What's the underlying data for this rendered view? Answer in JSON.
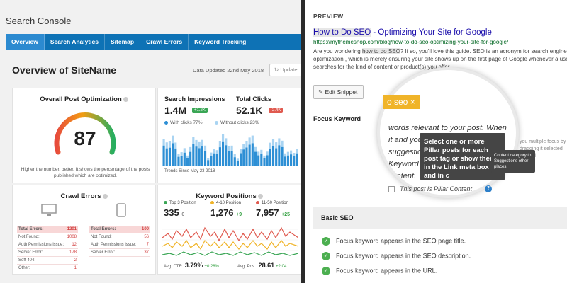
{
  "search_console": {
    "title": "Search Console",
    "tabs": [
      "Overview",
      "Search Analytics",
      "Sitemap",
      "Crawl Errors",
      "Keyword Tracking"
    ],
    "overview_title": "Overview of SiteName",
    "date_label": "Data Updated 22nd May 2018",
    "update_label": "Update",
    "post_optimization": {
      "heading": "Overall Post Optimization",
      "score": "87",
      "note": "Higher the number, better. It shows the percentage of the posts published which are optimized."
    },
    "impressions": {
      "label": "Search Impressions",
      "value": "1.4M",
      "badge": "+1.2K",
      "clicks_label": "Total Clicks",
      "clicks_value": "52.1K",
      "clicks_badge": "-2.4K",
      "legend_with": "With clicks 77%",
      "legend_without": "Without clicks 23%",
      "trend_note": "Trends Since May 23 2018"
    },
    "crawl_errors": {
      "heading": "Crawl Errors",
      "desktop": [
        {
          "k": "Total Errors:",
          "v": "1201"
        },
        {
          "k": "Not Found:",
          "v": "1008"
        },
        {
          "k": "Auth Permissions issue:",
          "v": "12"
        },
        {
          "k": "Server Error:",
          "v": "178"
        },
        {
          "k": "Soft 404:",
          "v": "2"
        },
        {
          "k": "Other:",
          "v": "1"
        }
      ],
      "mobile": [
        {
          "k": "Total Errors:",
          "v": "100"
        },
        {
          "k": "Not Found:",
          "v": "56"
        },
        {
          "k": "Auth Permissions issue:",
          "v": "7"
        },
        {
          "k": "Server Error:",
          "v": "37"
        }
      ]
    },
    "keyword_positions": {
      "heading": "Keyword Positions",
      "top3_label": "Top 3 Position",
      "top3_value": "335",
      "top3_delta": "0",
      "p4_10_label": "4-10 Position",
      "p4_10_value": "1,276",
      "p4_10_delta": "+9",
      "p11_50_label": "11-50 Position",
      "p11_50_value": "7,957",
      "p11_50_delta": "+25",
      "avg_ctr_label": "Avg. CTR",
      "avg_ctr_value": "3.79%",
      "avg_ctr_delta": "+0.28%",
      "avg_pos_label": "Avg. Pos.",
      "avg_pos_value": "28.61",
      "avg_pos_delta": "+2.04"
    }
  },
  "preview": {
    "heading": "PREVIEW",
    "serp_title_kw": "How to Do SEO",
    "serp_title_rest": " - Optimizing Your Site for Google",
    "serp_url": "https://mythemeshop.com/blog/how-to-do-seo-optimizing-your-site-for-google/",
    "serp_desc_1": "Are you wondering ",
    "serp_desc_kw": "how to do SEO",
    "serp_desc_2": "? If so, you'll love this guide. SEO is an acronym for search engine optimization , which is merely ensuring your site shows up on the first page of Google whenever a user searches for the kind of content or product(s) you offer.",
    "edit_snippet": "Edit Snippet",
    "focus_keyword_label": "Focus Keyword",
    "focus_tag": "o seo",
    "focus_tag_close": "×",
    "mag_text": "words relevant to your post. When it and you will get some suggestions. ct your Focus Keyword as well is page or in content.",
    "tooltip": "Select one or more Pillar posts for each post tag or show them in the Link meta box and in c",
    "tooltip_side": "Content category to Suggestions other places.",
    "ghost_text": "you multiple focus by dragging it selected internal",
    "pillar_label": "This post is Pillar Content",
    "pillar_help": "?",
    "basic_seo": "Basic SEO",
    "checks": [
      "Focus keyword appears in the SEO page title.",
      "Focus keyword appears in the SEO description.",
      "Focus keyword appears in the URL."
    ]
  },
  "colors": {
    "nav_blue": "#0e72b5",
    "green": "#2e9e3c",
    "red": "#d13b3b",
    "tag_orange": "#f0b429",
    "link_blue": "#1a0dab"
  }
}
